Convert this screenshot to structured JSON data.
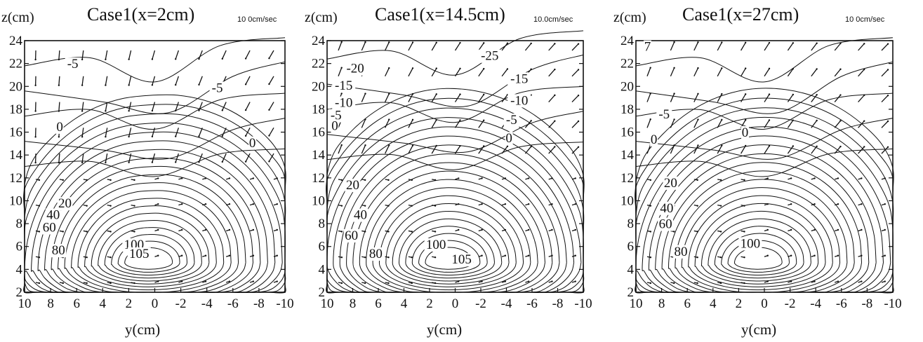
{
  "chart_data": [
    {
      "type": "contour",
      "title": "Case1(x=2cm)",
      "ylabel": "z(cm)",
      "xlabel": "y(cm)",
      "vector_scale": "10 0cm/sec",
      "xlim": [
        10,
        -10
      ],
      "ylim": [
        2,
        24
      ],
      "x_ticks": [
        10,
        8,
        6,
        4,
        2,
        0,
        -2,
        -4,
        -6,
        -8,
        -10
      ],
      "y_ticks": [
        2,
        4,
        6,
        8,
        10,
        12,
        14,
        16,
        18,
        20,
        22,
        24
      ],
      "contour_labels": [
        {
          "text": "-5",
          "y": 6.3,
          "z": 21.6
        },
        {
          "text": "-5",
          "y": -4.8,
          "z": 19.5
        },
        {
          "text": "0",
          "y": 7.3,
          "z": 16.1
        },
        {
          "text": "0",
          "y": -7.5,
          "z": 14.7
        },
        {
          "text": "20",
          "y": 6.9,
          "z": 9.4
        },
        {
          "text": "40",
          "y": 7.8,
          "z": 8.4
        },
        {
          "text": "60",
          "y": 8.1,
          "z": 7.3
        },
        {
          "text": "80",
          "y": 7.4,
          "z": 5.3
        },
        {
          "text": "100",
          "y": 1.6,
          "z": 5.8
        },
        {
          "text": "105",
          "y": 1.2,
          "z": 5.0
        }
      ]
    },
    {
      "type": "contour",
      "title": "Case1(x=14.5cm)",
      "ylabel": "z(cm)",
      "xlabel": "y(cm)",
      "vector_scale": "10.0cm/sec",
      "xlim": [
        10,
        -10
      ],
      "ylim": [
        2,
        24
      ],
      "x_ticks": [
        10,
        8,
        6,
        4,
        2,
        0,
        -2,
        -4,
        -6,
        -8,
        -10
      ],
      "y_ticks": [
        2,
        4,
        6,
        8,
        10,
        12,
        14,
        16,
        18,
        20,
        22,
        24
      ],
      "contour_labels": [
        {
          "text": "-25",
          "y": -2.7,
          "z": 22.3
        },
        {
          "text": "-20",
          "y": 7.8,
          "z": 21.2
        },
        {
          "text": "-15",
          "y": 8.7,
          "z": 19.7
        },
        {
          "text": "-15",
          "y": -5.0,
          "z": 20.3
        },
        {
          "text": "-10",
          "y": 8.7,
          "z": 18.2
        },
        {
          "text": "-10",
          "y": -5.0,
          "z": 18.4
        },
        {
          "text": "-5",
          "y": 9.3,
          "z": 17.1
        },
        {
          "text": "-5",
          "y": -4.4,
          "z": 16.7
        },
        {
          "text": "0",
          "y": 9.4,
          "z": 16.2
        },
        {
          "text": "0",
          "y": -4.2,
          "z": 15.1
        },
        {
          "text": "20",
          "y": 8.0,
          "z": 11.0
        },
        {
          "text": "40",
          "y": 7.4,
          "z": 8.4
        },
        {
          "text": "60",
          "y": 8.1,
          "z": 6.6
        },
        {
          "text": "80",
          "y": 6.2,
          "z": 5.0
        },
        {
          "text": "100",
          "y": 1.5,
          "z": 5.8
        },
        {
          "text": "105",
          "y": -0.5,
          "z": 4.5
        }
      ]
    },
    {
      "type": "contour",
      "title": "Case1(x=27cm)",
      "ylabel": "z(cm)",
      "xlabel": "y(cm)",
      "vector_scale": "10 0cm/sec",
      "xlim": [
        10,
        -10
      ],
      "ylim": [
        2,
        24
      ],
      "x_ticks": [
        10,
        8,
        6,
        4,
        2,
        0,
        -2,
        -4,
        -6,
        -8,
        -10
      ],
      "y_ticks": [
        2,
        4,
        6,
        8,
        10,
        12,
        14,
        16,
        18,
        20,
        22,
        24
      ],
      "contour_labels": [
        {
          "text": "7",
          "y": 9.1,
          "z": 23.1
        },
        {
          "text": "-5",
          "y": 7.8,
          "z": 17.2
        },
        {
          "text": "0",
          "y": 8.6,
          "z": 15.0
        },
        {
          "text": "0",
          "y": 1.5,
          "z": 15.6
        },
        {
          "text": "20",
          "y": 7.3,
          "z": 11.2
        },
        {
          "text": "40",
          "y": 7.6,
          "z": 9.0
        },
        {
          "text": "60",
          "y": 7.7,
          "z": 7.6
        },
        {
          "text": "80",
          "y": 6.5,
          "z": 5.2
        },
        {
          "text": "100",
          "y": 1.1,
          "z": 5.9
        }
      ]
    }
  ]
}
